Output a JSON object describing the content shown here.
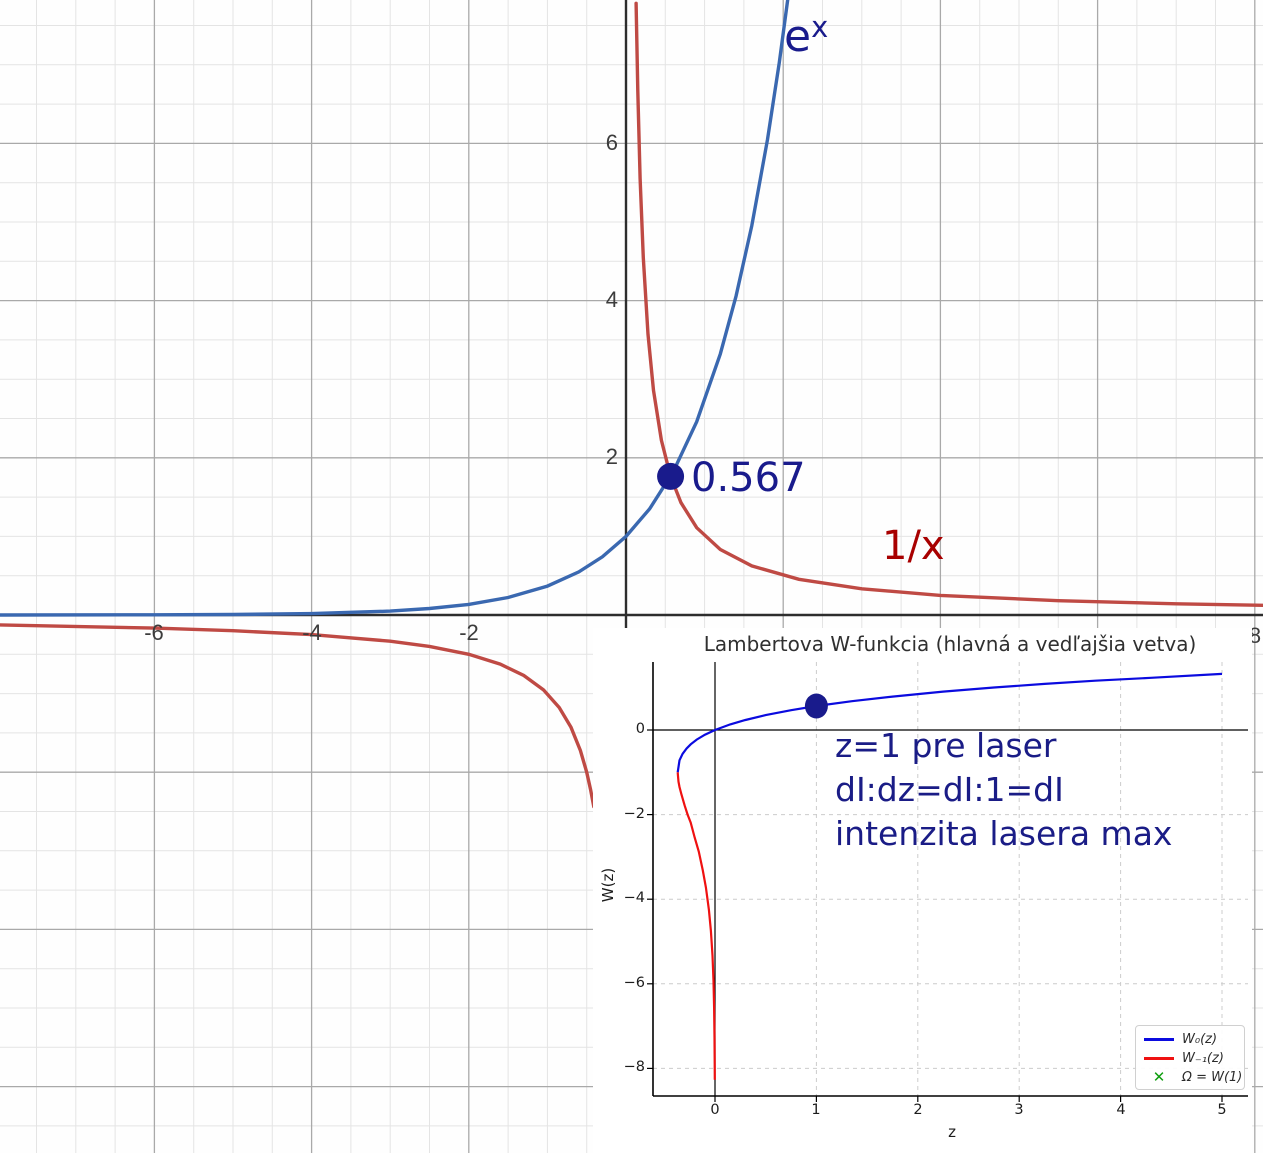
{
  "chart_data": [
    {
      "id": "main-graph",
      "type": "line",
      "description": "Graphing-tool view of y=e^x and y=1/x with their intersection marked",
      "x_axis": {
        "tick_values": [
          -6,
          -4,
          -2,
          8
        ],
        "tick_labels": [
          "-6",
          "-4",
          "-2",
          "8"
        ],
        "visible_range": [
          -7.96,
          8.1
        ]
      },
      "y_axis": {
        "tick_values": [
          2,
          4,
          6
        ],
        "tick_labels": [
          "2",
          "4",
          "6"
        ],
        "visible_range": [
          -6.85,
          7.82
        ]
      },
      "grid": {
        "minor_step": 0.5,
        "major_step": 2,
        "minor_color": "#e4e4e4",
        "major_color": "#a9a9a9",
        "axis_color": "#2d2d2d"
      },
      "series": [
        {
          "name": "exponential",
          "label": "e",
          "label_sup": "x",
          "label_color": "#191b8c",
          "color": "#3a68b0",
          "points": [
            [
              -8,
              0.0003
            ],
            [
              -6,
              0.0025
            ],
            [
              -5,
              0.0067
            ],
            [
              -4,
              0.0183
            ],
            [
              -3,
              0.0498
            ],
            [
              -2.5,
              0.0821
            ],
            [
              -2,
              0.1353
            ],
            [
              -1.5,
              0.2231
            ],
            [
              -1,
              0.3679
            ],
            [
              -0.6,
              0.5488
            ],
            [
              -0.3,
              0.7408
            ],
            [
              0,
              1
            ],
            [
              0.3,
              1.3499
            ],
            [
              0.6,
              1.8221
            ],
            [
              0.9,
              2.4596
            ],
            [
              1.2,
              3.3201
            ],
            [
              1.4,
              4.0552
            ],
            [
              1.6,
              4.953
            ],
            [
              1.8,
              6.0496
            ],
            [
              1.95,
              7.0287
            ],
            [
              2.06,
              7.846
            ]
          ]
        },
        {
          "name": "reciprocal",
          "label": "1/x",
          "label_color": "#a80000",
          "color": "#bf4a44",
          "branches": [
            [
              [
                0.1285,
                7.7821
              ],
              [
                0.15,
                6.6667
              ],
              [
                0.18,
                5.5556
              ],
              [
                0.22,
                4.5455
              ],
              [
                0.28,
                3.5714
              ],
              [
                0.35,
                2.8571
              ],
              [
                0.45,
                2.2222
              ],
              [
                0.567,
                1.7632
              ],
              [
                0.7,
                1.4286
              ],
              [
                0.9,
                1.1111
              ],
              [
                1.2,
                0.8333
              ],
              [
                1.6,
                0.625
              ],
              [
                2.2,
                0.4545
              ],
              [
                3,
                0.3333
              ],
              [
                4,
                0.25
              ],
              [
                5.5,
                0.1818
              ],
              [
                7,
                0.1429
              ],
              [
                8.15,
                0.1227
              ]
            ],
            [
              [
                -7.97,
                -0.1255
              ],
              [
                -6,
                -0.1667
              ],
              [
                -5,
                -0.2
              ],
              [
                -4,
                -0.25
              ],
              [
                -3,
                -0.3333
              ],
              [
                -2.5,
                -0.4
              ],
              [
                -2,
                -0.5
              ],
              [
                -1.6,
                -0.625
              ],
              [
                -1.3,
                -0.7692
              ],
              [
                -1.05,
                -0.9524
              ],
              [
                -0.85,
                -1.1765
              ],
              [
                -0.7,
                -1.4286
              ],
              [
                -0.58,
                -1.7241
              ],
              [
                -0.5,
                -2
              ],
              [
                -0.45,
                -2.2222
              ],
              [
                -0.41,
                -2.439
              ]
            ]
          ]
        }
      ],
      "intersection": {
        "x": 0.5671,
        "y": 1.7632,
        "label": "0.567",
        "color": "#191b8c"
      }
    },
    {
      "id": "lambert-w-inset",
      "type": "line",
      "title": "Lambertova W-funkcia (hlavná a vedľajšia vetva)",
      "title_color": "#303030",
      "xlabel": "z",
      "ylabel": "W(z)",
      "xlim": [
        -0.62,
        5.26
      ],
      "ylim": [
        -8.68,
        1.58
      ],
      "x_ticks": {
        "values": [
          0,
          1,
          2,
          3,
          4,
          5
        ],
        "labels": [
          "0",
          "1",
          "2",
          "3",
          "4",
          "5"
        ]
      },
      "y_ticks": {
        "values": [
          0,
          -2,
          -4,
          -6,
          -8
        ],
        "labels": [
          "0",
          "−2",
          "−4",
          "−6",
          "−8"
        ]
      },
      "grid": {
        "style": "dashed",
        "color": "#cccccc"
      },
      "series": [
        {
          "name": "W0",
          "legend": "W₀(z)",
          "color": "#0b0bdf",
          "points": [
            [
              -0.3679,
              -1
            ],
            [
              -0.35,
              -0.7166
            ],
            [
              -0.32,
              -0.5615
            ],
            [
              -0.28,
              -0.4362
            ],
            [
              -0.24,
              -0.3372
            ],
            [
              -0.18,
              -0.2264
            ],
            [
              -0.1,
              -0.1118
            ],
            [
              0,
              0
            ],
            [
              0.15,
              0.1324
            ],
            [
              0.3,
              0.2368
            ],
            [
              0.5,
              0.3517
            ],
            [
              0.75,
              0.4692
            ],
            [
              1,
              0.5671
            ],
            [
              1.35,
              0.68
            ],
            [
              1.75,
              0.7906
            ],
            [
              2.25,
              0.907
            ],
            [
              2.75,
              1.005
            ],
            [
              3.25,
              1.091
            ],
            [
              3.75,
              1.165
            ],
            [
              4.3,
              1.235
            ],
            [
              5,
              1.3267
            ]
          ]
        },
        {
          "name": "W-1",
          "legend": "W₋₁(z)",
          "color": "#ef1111",
          "points": [
            [
              -0.3679,
              -1
            ],
            [
              -0.365,
              -1.09
            ],
            [
              -0.36,
              -1.2218
            ],
            [
              -0.35,
              -1.3466
            ],
            [
              -0.33,
              -1.527
            ],
            [
              -0.3,
              -1.7813
            ],
            [
              -0.27,
              -1.999
            ],
            [
              -0.24,
              -2.19
            ],
            [
              -0.2,
              -2.5426
            ],
            [
              -0.16,
              -2.878
            ],
            [
              -0.12,
              -3.32
            ],
            [
              -0.09,
              -3.72
            ],
            [
              -0.06,
              -4.25
            ],
            [
              -0.04,
              -4.75
            ],
            [
              -0.025,
              -5.33
            ],
            [
              -0.015,
              -5.936
            ],
            [
              -0.009,
              -6.555
            ],
            [
              -0.005,
              -7.267
            ],
            [
              -0.003,
              -7.872
            ],
            [
              -0.0021,
              -8.27
            ]
          ]
        }
      ],
      "marker": {
        "legend": "Ω = W(1)",
        "symbol": "x",
        "color": "#0f9e0f",
        "z": 1,
        "w": 0.5671
      },
      "highlight": {
        "z": 1,
        "w": 0.5671,
        "color": "#191b8c"
      },
      "annotation": {
        "color": "#1a1c86",
        "lines": [
          "z=1 pre laser",
          "dI:dz=dI:1=dI",
          "intenzita lasera max"
        ]
      }
    }
  ]
}
